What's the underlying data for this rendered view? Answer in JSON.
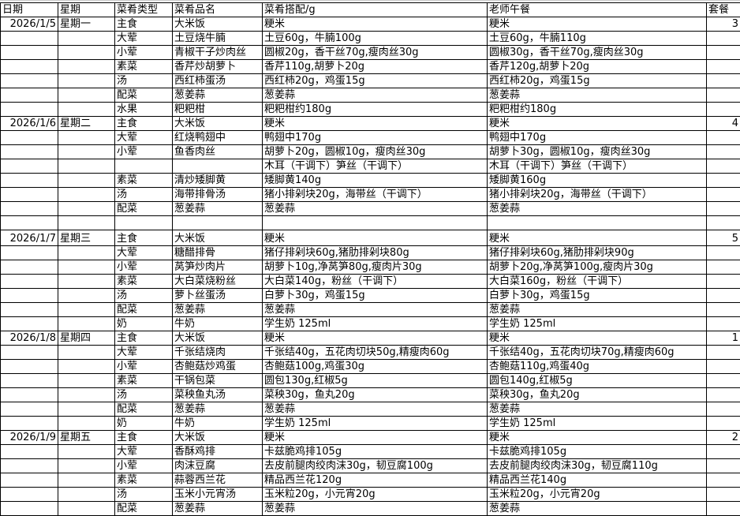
{
  "headers": [
    "日期",
    "星期",
    "菜肴类型",
    "菜肴品名",
    "菜肴搭配/g",
    "老师午餐",
    "套餐"
  ],
  "rows": [
    [
      "2026/1/5",
      "星期一",
      "主食",
      "大米饭",
      "粳米",
      "粳米",
      "3"
    ],
    [
      "",
      "",
      "大荤",
      "土豆烧牛腩",
      "土豆60g，牛腩100g",
      "土豆60g，牛腩110g",
      ""
    ],
    [
      "",
      "",
      "小荤",
      "青椒干子炒肉丝",
      "圆椒20g，香干丝70g,瘦肉丝30g",
      "圆椒30g，香干丝70g,瘦肉丝30g",
      ""
    ],
    [
      "",
      "",
      "素菜",
      "香芹炒胡萝卜",
      "香芹110g,胡萝卜20g",
      "香芹120g,胡萝卜20g",
      ""
    ],
    [
      "",
      "",
      "汤",
      "西红柿蛋汤",
      "西红柿20g，鸡蛋15g",
      "西红柿20g，鸡蛋15g",
      ""
    ],
    [
      "",
      "",
      "配菜",
      "葱姜蒜",
      "葱姜蒜",
      "葱姜蒜",
      ""
    ],
    [
      "",
      "",
      "水果",
      "粑粑柑",
      "粑粑柑约180g",
      "粑粑柑约180g",
      ""
    ],
    [
      "2026/1/6",
      "星期二",
      "主食",
      "大米饭",
      "粳米",
      "粳米",
      "4"
    ],
    [
      "",
      "",
      "大荤",
      "红烧鸭翅中",
      "鸭翅中170g",
      "鸭翅中170g",
      ""
    ],
    [
      "",
      "",
      "小荤",
      "鱼香肉丝",
      "胡萝卜20g，圆椒10g，瘦肉丝30g",
      "胡萝卜30g，圆椒10g，瘦肉丝30g",
      ""
    ],
    [
      "",
      "",
      "",
      "",
      "木耳（干调下）笋丝（干调下）",
      "木耳（干调下）笋丝（干调下）",
      ""
    ],
    [
      "",
      "",
      "素菜",
      "清炒矮脚黄",
      "矮脚黄140g",
      "矮脚黄160g",
      ""
    ],
    [
      "",
      "",
      "汤",
      "海带排骨汤",
      "猪小排剁块20g，海带丝（干调下）",
      "猪小排剁块20g，海带丝（干调下）",
      ""
    ],
    [
      "",
      "",
      "配菜",
      "葱姜蒜",
      "葱姜蒜",
      "葱姜蒜",
      ""
    ],
    [
      "",
      "",
      "",
      "",
      "",
      "",
      ""
    ],
    [
      "2026/1/7",
      "星期三",
      "主食",
      "大米饭",
      "粳米",
      "粳米",
      "5"
    ],
    [
      "",
      "",
      "大荤",
      "糖醋排骨",
      "猪仔排剁块60g,猪肋排剁块80g",
      "猪仔排剁块60g,猪肋排剁块90g",
      ""
    ],
    [
      "",
      "",
      "小荤",
      "莴笋炒肉片",
      "胡萝卜10g,净莴笋80g,瘦肉片30g",
      "胡萝卜20g,净莴笋100g,瘦肉片30g",
      ""
    ],
    [
      "",
      "",
      "素菜",
      "大白菜烧粉丝",
      "大白菜140g，粉丝（干调下）",
      "大白菜160g，粉丝（干调下）",
      ""
    ],
    [
      "",
      "",
      "汤",
      "萝卜丝蛋汤",
      "白萝卜30g，鸡蛋15g",
      "白萝卜30g，鸡蛋15g",
      ""
    ],
    [
      "",
      "",
      "配菜",
      "葱姜蒜",
      "葱姜蒜",
      "葱姜蒜",
      ""
    ],
    [
      "",
      "",
      "奶",
      "牛奶",
      "学生奶 125ml",
      "学生奶 125ml",
      ""
    ],
    [
      "2026/1/8",
      "星期四",
      "主食",
      "大米饭",
      "粳米",
      "粳米",
      "1"
    ],
    [
      "",
      "",
      "大荤",
      "千张结烧肉",
      "千张结40g，五花肉切块50g,精瘦肉60g",
      "千张结40g，五花肉切块70g,精瘦肉60g",
      ""
    ],
    [
      "",
      "",
      "小荤",
      "杏鲍菇炒鸡蛋",
      "杏鲍菇100g,鸡蛋30g",
      "杏鲍菇110g,鸡蛋40g",
      ""
    ],
    [
      "",
      "",
      "素菜",
      "干锅包菜",
      "圆包130g,红椒5g",
      "圆包140g,红椒5g",
      ""
    ],
    [
      "",
      "",
      "汤",
      "菜秧鱼丸汤",
      "菜秧30g，鱼丸20g",
      "菜秧30g，鱼丸20g",
      ""
    ],
    [
      "",
      "",
      "配菜",
      "葱姜蒜",
      "葱姜蒜",
      "葱姜蒜",
      ""
    ],
    [
      "",
      "",
      "奶",
      "牛奶",
      "学生奶 125ml",
      "学生奶 125ml",
      ""
    ],
    [
      "2026/1/9",
      "星期五",
      "主食",
      "大米饭",
      "粳米",
      "粳米",
      "2"
    ],
    [
      "",
      "",
      "大荤",
      "香酥鸡排",
      "卡兹脆鸡排105g",
      "卡兹脆鸡排105g",
      ""
    ],
    [
      "",
      "",
      "小荤",
      "肉沫豆腐",
      "去皮前腿肉绞肉沫30g，韧豆腐100g",
      "去皮前腿肉绞肉沫30g，韧豆腐110g",
      ""
    ],
    [
      "",
      "",
      "素菜",
      "蒜蓉西兰花",
      "精品西兰花120g",
      "精品西兰花140g",
      ""
    ],
    [
      "",
      "",
      "汤",
      "玉米小元宵汤",
      "玉米粒20g，小元宵20g",
      "玉米粒20g，小元宵20g",
      ""
    ],
    [
      "",
      "",
      "配菜",
      "葱姜蒜",
      "葱姜蒜",
      "葱姜蒜",
      ""
    ]
  ]
}
